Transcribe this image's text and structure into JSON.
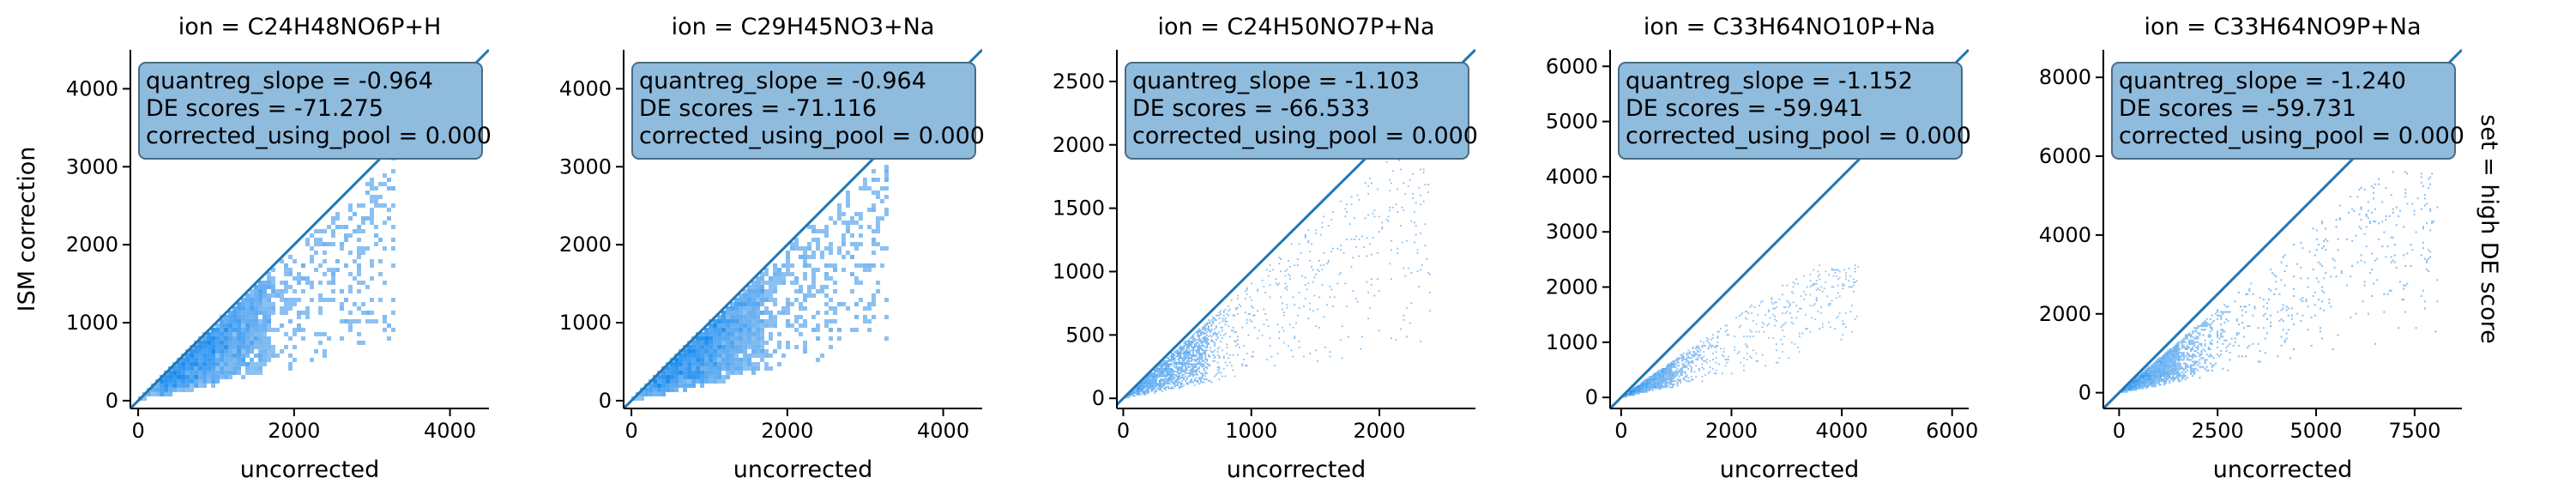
{
  "figure": {
    "row_label": "set = high DE score",
    "shared_ylabel": "ISM correction",
    "colors": {
      "identity_line": "#1f77b4",
      "stat_box_fill": "#8fbbdd",
      "stat_box_edge": "#4a6c85",
      "hist_light": "#a8cdf2",
      "hist_dark": "#1a8cf0",
      "axis": "#000000"
    }
  },
  "chart_data": [
    {
      "type": "heatmap",
      "title": "ion = C24H48NO6P+H",
      "xlabel": "uncorrected",
      "ylabel": "ISM correction",
      "xlim": [
        -100,
        4500
      ],
      "ylim": [
        -100,
        4500
      ],
      "xticks": [
        0,
        2000,
        4000
      ],
      "yticks": [
        0,
        1000,
        2000,
        3000,
        4000
      ],
      "xtick_labels": [
        "0",
        "2000",
        "4000"
      ],
      "ytick_labels": [
        "0",
        "1000",
        "2000",
        "3000",
        "4000"
      ],
      "identity_line": [
        [
          -100,
          -100
        ],
        [
          4500,
          4500
        ]
      ],
      "stats": {
        "quantreg_slope": "-0.964",
        "DE_scores": "-71.275",
        "corrected_using_pool": "0.000"
      },
      "stat_lines": [
        "quantreg_slope = -0.964",
        "DE scores = -71.275",
        "corrected_using_pool = 0.000"
      ],
      "density": {
        "x_max": 3300,
        "y_max": 3300,
        "upper_ratio": 0.96,
        "lower_ratio": 0.22,
        "peak_x": 900,
        "spread_x": 520,
        "n_points": 2600,
        "bin": 55,
        "grain": "coarse"
      }
    },
    {
      "type": "heatmap",
      "title": "ion = C29H45NO3+Na",
      "xlabel": "uncorrected",
      "ylabel": "",
      "xlim": [
        -100,
        4500
      ],
      "ylim": [
        -100,
        4500
      ],
      "xticks": [
        0,
        2000,
        4000
      ],
      "yticks": [
        0,
        1000,
        2000,
        3000,
        4000
      ],
      "xtick_labels": [
        "0",
        "2000",
        "4000"
      ],
      "ytick_labels": [
        "0",
        "1000",
        "2000",
        "3000",
        "4000"
      ],
      "identity_line": [
        [
          -100,
          -100
        ],
        [
          4500,
          4500
        ]
      ],
      "stats": {
        "quantreg_slope": "-0.964",
        "DE_scores": "-71.116",
        "corrected_using_pool": "0.000"
      },
      "stat_lines": [
        "quantreg_slope = -0.964",
        "DE scores = -71.116",
        "corrected_using_pool = 0.000"
      ],
      "density": {
        "x_max": 3300,
        "y_max": 3300,
        "upper_ratio": 0.96,
        "lower_ratio": 0.22,
        "peak_x": 900,
        "spread_x": 520,
        "n_points": 2600,
        "bin": 55,
        "grain": "coarse"
      }
    },
    {
      "type": "heatmap",
      "title": "ion = C24H50NO7P+Na",
      "xlabel": "uncorrected",
      "ylabel": "",
      "xlim": [
        -50,
        2750
      ],
      "ylim": [
        -80,
        2750
      ],
      "xticks": [
        0,
        1000,
        2000
      ],
      "yticks": [
        0,
        500,
        1000,
        1500,
        2000,
        2500
      ],
      "xtick_labels": [
        "0",
        "1000",
        "2000"
      ],
      "ytick_labels": [
        "0",
        "500",
        "1000",
        "1500",
        "2000",
        "2500"
      ],
      "identity_line": [
        [
          -80,
          -80
        ],
        [
          2750,
          2750
        ]
      ],
      "stats": {
        "quantreg_slope": "-1.103",
        "DE_scores": "-66.533",
        "corrected_using_pool": "0.000"
      },
      "stat_lines": [
        "quantreg_slope = -1.103",
        "DE scores = -66.533",
        "corrected_using_pool = 0.000"
      ],
      "density": {
        "x_max": 2400,
        "y_max": 1900,
        "upper_ratio": 0.92,
        "lower_ratio": 0.18,
        "peak_x": 350,
        "spread_x": 380,
        "n_points": 2400,
        "bin": 12,
        "grain": "fine"
      }
    },
    {
      "type": "heatmap",
      "title": "ion = C33H64NO10P+Na",
      "xlabel": "uncorrected",
      "ylabel": "",
      "xlim": [
        -200,
        6300
      ],
      "ylim": [
        -200,
        6300
      ],
      "xticks": [
        0,
        2000,
        4000,
        6000
      ],
      "yticks": [
        0,
        1000,
        2000,
        3000,
        4000,
        5000,
        6000
      ],
      "xtick_labels": [
        "0",
        "2000",
        "4000",
        "6000"
      ],
      "ytick_labels": [
        "0",
        "1000",
        "2000",
        "3000",
        "4000",
        "5000",
        "6000"
      ],
      "identity_line": [
        [
          -200,
          -200
        ],
        [
          6300,
          6300
        ]
      ],
      "stats": {
        "quantreg_slope": "-1.152",
        "DE_scores": "-59.941",
        "corrected_using_pool": "0.000"
      },
      "stat_lines": [
        "quantreg_slope = -1.152",
        "DE scores = -59.941",
        "corrected_using_pool = 0.000"
      ],
      "density": {
        "x_max": 4300,
        "y_max": 2400,
        "upper_ratio": 0.7,
        "lower_ratio": 0.2,
        "peak_x": 500,
        "spread_x": 700,
        "n_points": 2200,
        "bin": 28,
        "grain": "fine"
      }
    },
    {
      "type": "heatmap",
      "title": "ion = C33H64NO9P+Na",
      "xlabel": "uncorrected",
      "ylabel": "",
      "xlim": [
        -400,
        8700
      ],
      "ylim": [
        -400,
        8700
      ],
      "xticks": [
        0,
        2500,
        5000,
        7500
      ],
      "yticks": [
        0,
        2000,
        4000,
        6000,
        8000
      ],
      "xtick_labels": [
        "0",
        "2500",
        "5000",
        "7500"
      ],
      "ytick_labels": [
        "0",
        "2000",
        "4000",
        "6000",
        "8000"
      ],
      "identity_line": [
        [
          -400,
          -400
        ],
        [
          8700,
          8700
        ]
      ],
      "stats": {
        "quantreg_slope": "-1.240",
        "DE_scores": "-59.731",
        "corrected_using_pool": "0.000"
      },
      "stat_lines": [
        "quantreg_slope = -1.240",
        "DE scores = -59.731",
        "corrected_using_pool = 0.000"
      ],
      "density": {
        "x_max": 8100,
        "y_max": 5600,
        "upper_ratio": 0.85,
        "lower_ratio": 0.18,
        "peak_x": 800,
        "spread_x": 1200,
        "n_points": 2800,
        "bin": 45,
        "grain": "fine"
      }
    }
  ]
}
